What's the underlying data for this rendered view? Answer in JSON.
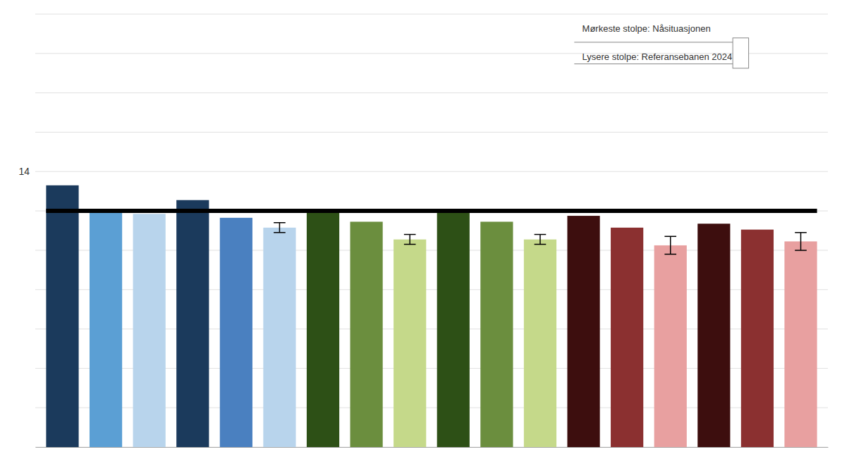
{
  "chart_data": {
    "type": "bar",
    "categories": [
      null,
      null,
      null,
      null,
      null,
      null,
      null,
      null,
      null,
      null,
      null,
      null,
      null,
      null,
      null,
      null,
      null,
      null
    ],
    "values": [
      13.3,
      12.05,
      11.85,
      12.55,
      11.65,
      11.15,
      12.05,
      11.45,
      10.55,
      12.05,
      11.45,
      10.55,
      11.75,
      11.15,
      10.25,
      11.35,
      11.05,
      10.45
    ],
    "errors": [
      null,
      null,
      null,
      null,
      null,
      0.25,
      null,
      null,
      0.25,
      null,
      null,
      0.25,
      null,
      null,
      0.45,
      null,
      null,
      0.45
    ],
    "colors": [
      "#1b3a5c",
      "#5b9fd4",
      "#b8d4ec",
      "#1b3a5c",
      "#4a80c0",
      "#b8d4ec",
      "#2d5016",
      "#6b8e3e",
      "#c5d98a",
      "#2d5016",
      "#6b8e3e",
      "#c5d98a",
      "#3d0e0e",
      "#8b3030",
      "#e8a0a0",
      "#3d0e0e",
      "#8b3030",
      "#e8a0a0"
    ],
    "threshold": 12,
    "ylim": [
      0,
      22
    ],
    "yticks": [
      {
        "value": 0,
        "label": null
      },
      {
        "value": 2,
        "label": null
      },
      {
        "value": 4,
        "label": null
      },
      {
        "value": 6,
        "label": null
      },
      {
        "value": 8,
        "label": null
      },
      {
        "value": 10,
        "label": null
      },
      {
        "value": 12,
        "label": null
      },
      14,
      {
        "value": 16,
        "label": null
      },
      {
        "value": 18,
        "label": null
      },
      {
        "value": 20,
        "label": null
      },
      {
        "value": 22,
        "label": null
      }
    ],
    "grid": true,
    "tick_labels": "y",
    "annotations": [
      "Mørkeste stolpe: Nåsituasjonen",
      "Lysere stolpe: Referansebanen 2024"
    ]
  }
}
